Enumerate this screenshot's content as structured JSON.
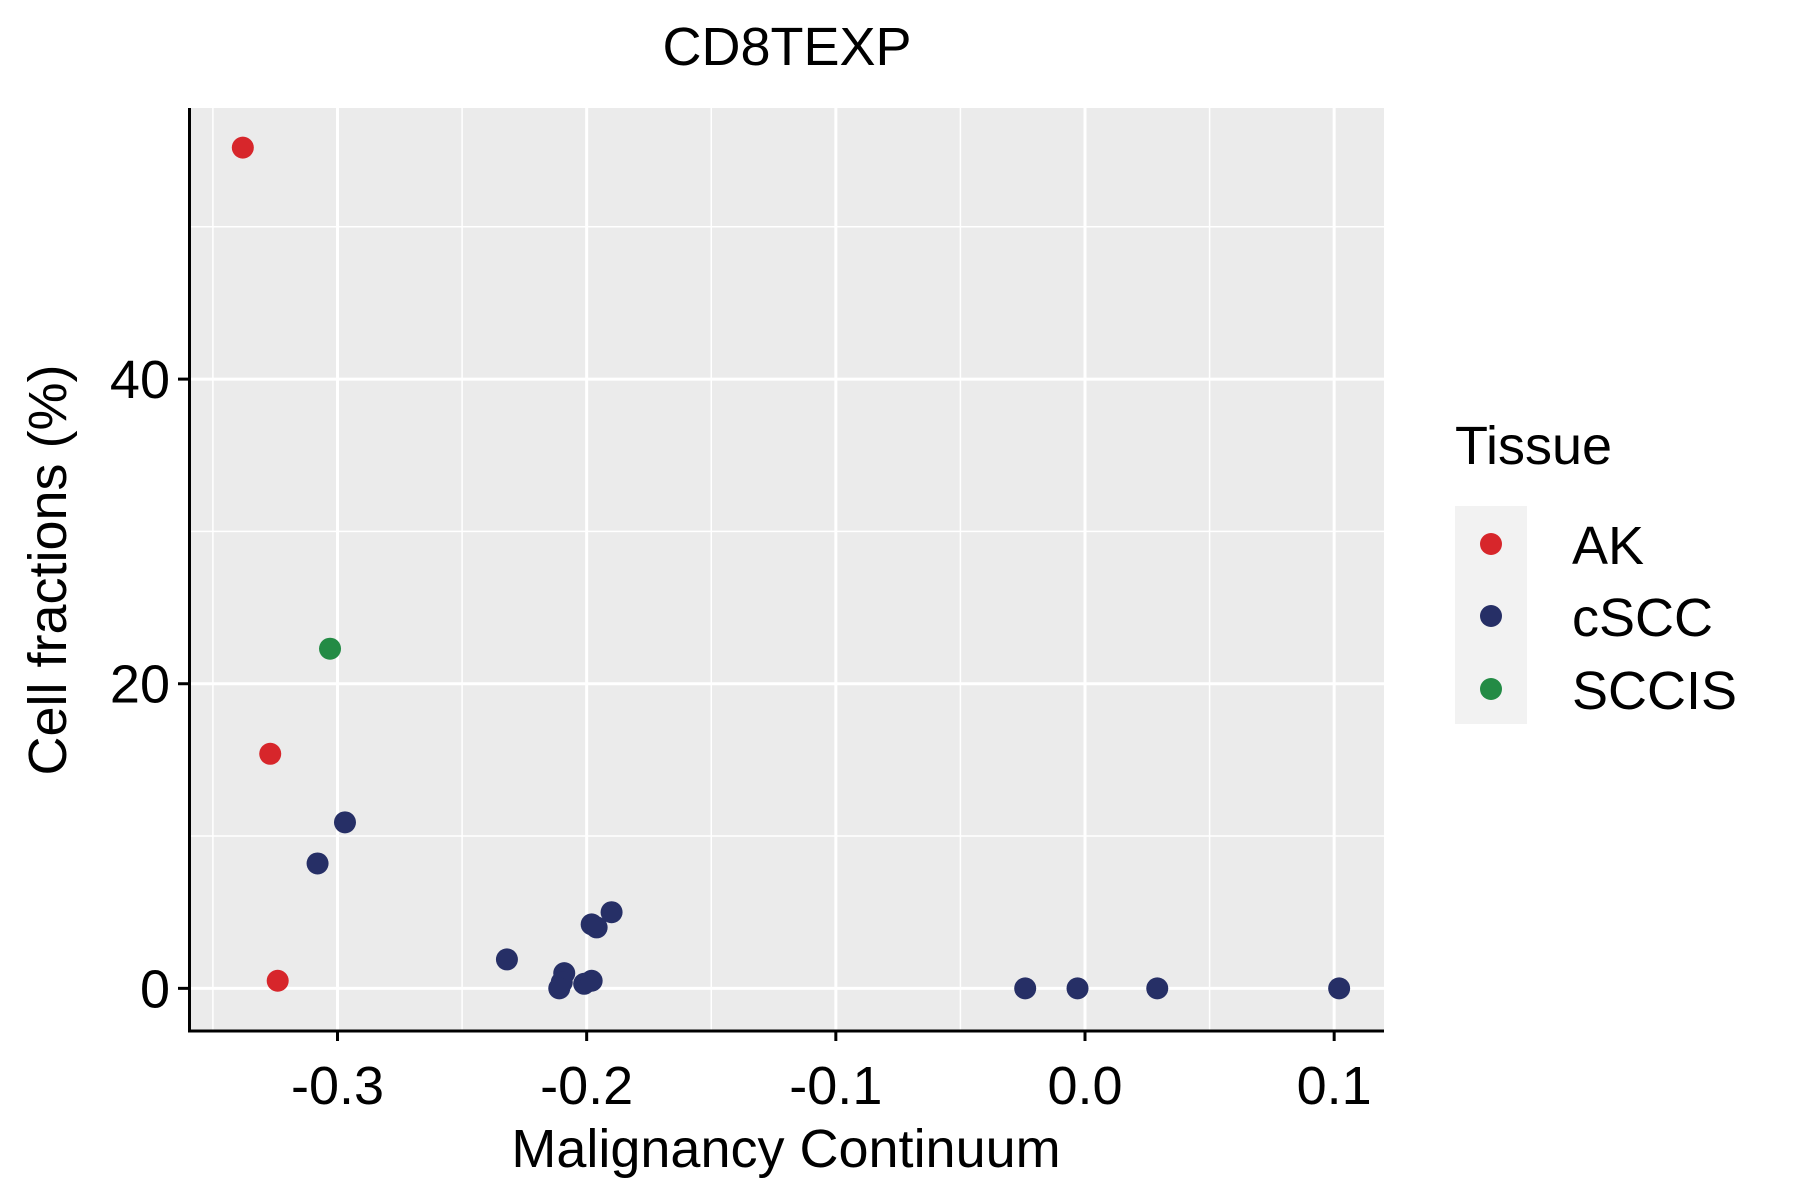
{
  "chart_data": {
    "type": "scatter",
    "title": "CD8TEXP",
    "xlabel": "Malignancy Continuum",
    "ylabel": "Cell fractions (%)",
    "xlim": [
      -0.36,
      0.12
    ],
    "ylim": [
      -2.8,
      57.8
    ],
    "x_ticks": [
      -0.3,
      -0.2,
      -0.1,
      0.0,
      0.1
    ],
    "x_tick_labels": [
      "-0.3",
      "-0.2",
      "-0.1",
      "0.0",
      "0.1"
    ],
    "x_minor_ticks": [
      -0.35,
      -0.25,
      -0.15,
      -0.05,
      0.05
    ],
    "y_ticks": [
      0,
      20,
      40
    ],
    "y_tick_labels": [
      "0",
      "20",
      "40"
    ],
    "y_minor_ticks": [
      10,
      30,
      50
    ],
    "grid": true,
    "legend": {
      "title": "Tissue",
      "position": "right"
    },
    "series": [
      {
        "name": "AK",
        "color": "#D7262B",
        "points": [
          {
            "x": -0.338,
            "y": 55.2
          },
          {
            "x": -0.327,
            "y": 15.4
          },
          {
            "x": -0.324,
            "y": 0.5
          }
        ]
      },
      {
        "name": "cSCC",
        "color": "#262F66",
        "points": [
          {
            "x": -0.297,
            "y": 10.9
          },
          {
            "x": -0.308,
            "y": 8.2
          },
          {
            "x": -0.232,
            "y": 1.9
          },
          {
            "x": -0.209,
            "y": 1.0
          },
          {
            "x": -0.21,
            "y": 0.4
          },
          {
            "x": -0.211,
            "y": 0.0
          },
          {
            "x": -0.201,
            "y": 0.3
          },
          {
            "x": -0.198,
            "y": 0.5
          },
          {
            "x": -0.198,
            "y": 4.2
          },
          {
            "x": -0.196,
            "y": 4.0
          },
          {
            "x": -0.19,
            "y": 5.0
          },
          {
            "x": -0.024,
            "y": 0.0
          },
          {
            "x": -0.003,
            "y": 0.0
          },
          {
            "x": 0.029,
            "y": 0.0
          },
          {
            "x": 0.102,
            "y": 0.0
          }
        ]
      },
      {
        "name": "SCCIS",
        "color": "#238B45",
        "points": [
          {
            "x": -0.303,
            "y": 22.3
          }
        ]
      }
    ]
  }
}
